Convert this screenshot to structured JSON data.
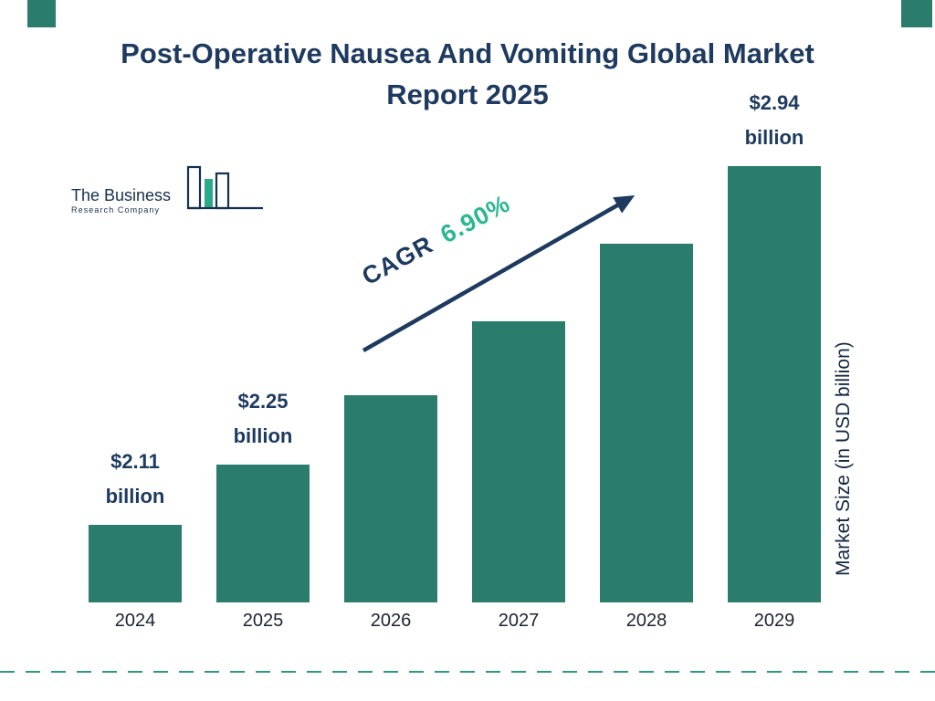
{
  "title": "Post-Operative Nausea And Vomiting Global Market Report 2025",
  "logo": {
    "line1": "The Business",
    "line2": "Research Company"
  },
  "cagr": {
    "label": "CAGR",
    "value": "6.90%"
  },
  "chart_data": {
    "type": "bar",
    "title": "Post-Operative Nausea And Vomiting Global Market Report 2025",
    "categories": [
      "2024",
      "2025",
      "2026",
      "2027",
      "2028",
      "2029"
    ],
    "values": [
      2.11,
      2.25,
      2.41,
      2.58,
      2.76,
      2.94
    ],
    "unit": "USD billion",
    "ylabel": "Market Size (in USD billion)",
    "xlabel": "",
    "cagr_pct": 6.9,
    "annotations": [
      {
        "category": "2024",
        "line1": "$2.11",
        "line2": "billion"
      },
      {
        "category": "2025",
        "line1": "$2.25",
        "line2": "billion"
      },
      {
        "category": "2029",
        "line1": "$2.94",
        "line2": "billion"
      }
    ],
    "y_baseline": 1.93,
    "y_max": 2.94,
    "grid": false,
    "legend": false
  },
  "colors": {
    "bar": "#2a7c6c",
    "navy": "#1e3a5f",
    "cagr_green": "#2ab793",
    "dash": "#2d9886"
  }
}
